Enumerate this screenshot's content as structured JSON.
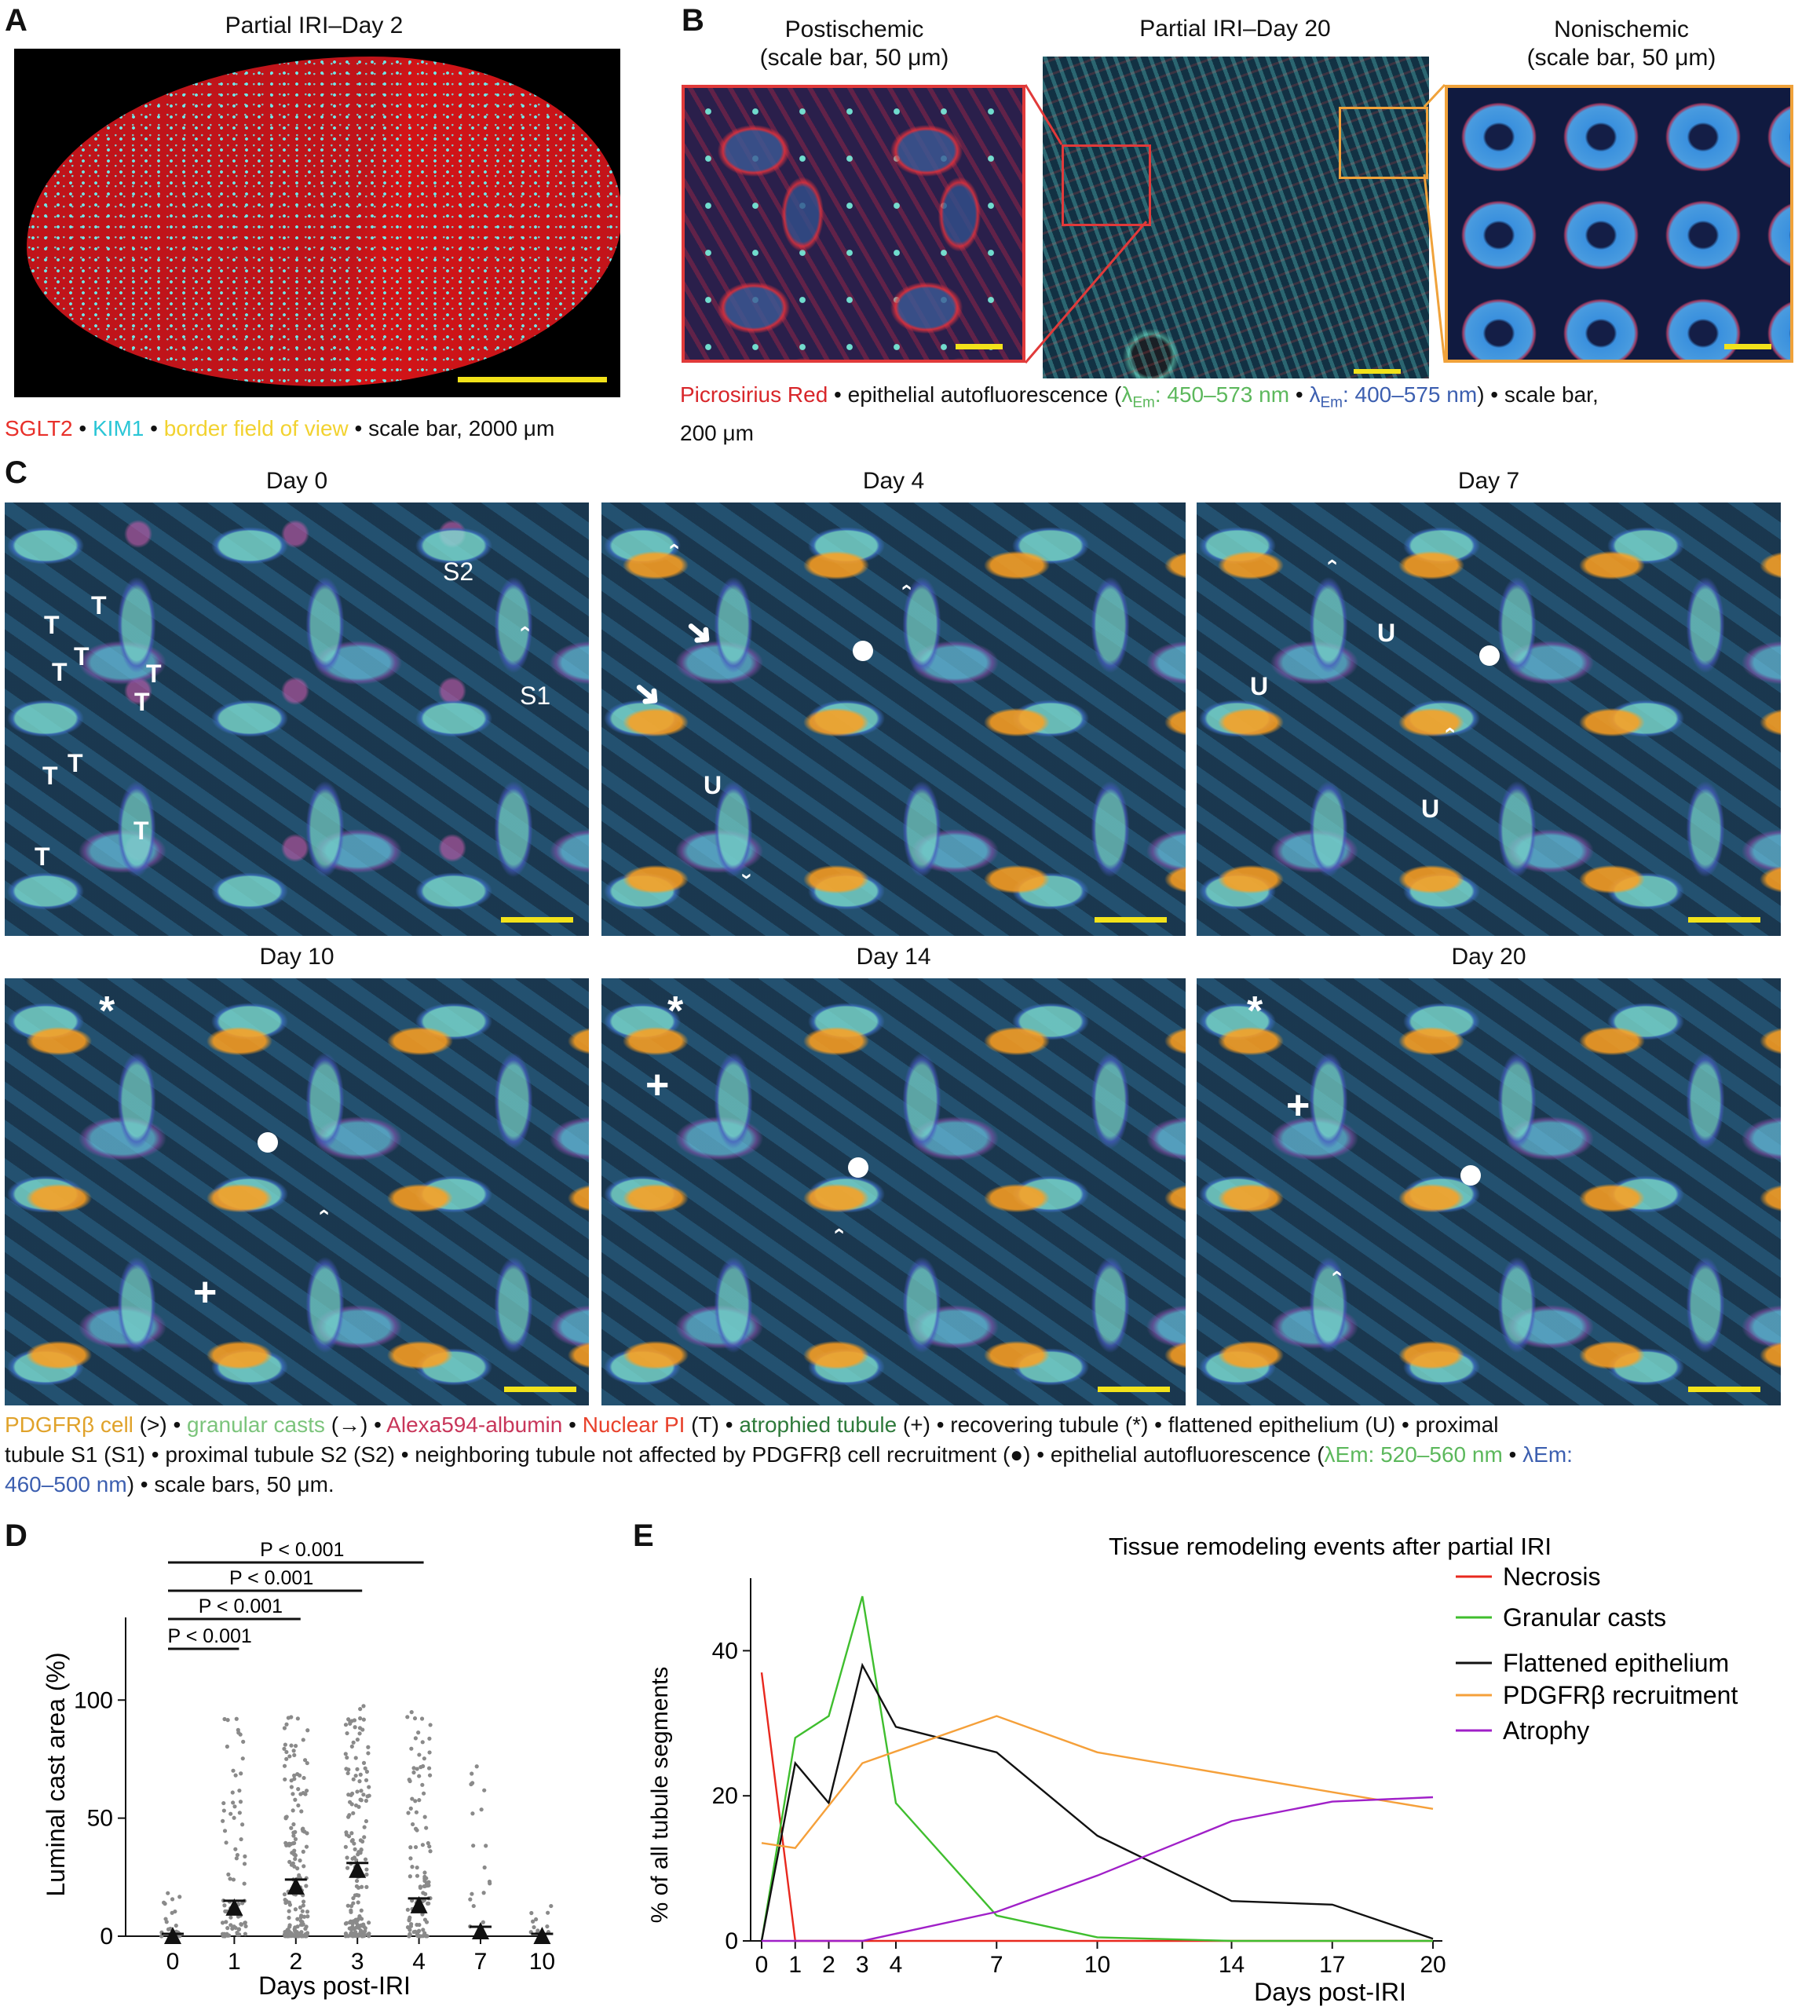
{
  "panelA": {
    "letter": "A",
    "title": "Partial IRI–Day 2",
    "legend": [
      {
        "text": "SGLT2",
        "color": "#e8302a"
      },
      {
        "text": " • ",
        "color": "#111111"
      },
      {
        "text": "KIM1",
        "color": "#2bc6d6"
      },
      {
        "text": " • ",
        "color": "#111111"
      },
      {
        "text": "border field of view",
        "color": "#f2d230"
      },
      {
        "text": " • scale bar, 2000 μm",
        "color": "#111111"
      }
    ]
  },
  "panelB": {
    "letter": "B",
    "title_left_1": "Postischemic",
    "title_left_2": "(scale bar, 50 μm)",
    "title_mid": "Partial IRI–Day 20",
    "title_right_1": "Nonischemic",
    "title_right_2": "(scale bar, 50 μm)",
    "legend_red": "Picrosirius Red",
    "legend_1": " • epithelial autofluorescence (",
    "legend_lam1": "λ",
    "legend_em1": "Em",
    "legend_green": ": 450–573 nm",
    "legend_sep": " • ",
    "legend_lam2": "λ",
    "legend_em2": "Em",
    "legend_blue": ": 400–575  nm",
    "legend_end": ") • scale bar,",
    "legend_line2": "200 μm"
  },
  "panelC": {
    "letter": "C",
    "days": [
      "Day 0",
      "Day 4",
      "Day 7",
      "Day 10",
      "Day 14",
      "Day 20"
    ],
    "markers": {
      "T": "T",
      "S1": "S1",
      "S2": "S2",
      "U": "U",
      "arrow": "➜",
      "chevron": "‹",
      "plus": "+",
      "star": "*"
    },
    "legend_line1": [
      {
        "text": "PDGFRβ cell",
        "color": "#e0a22a"
      },
      {
        "text": " (>) • ",
        "color": "#111111"
      },
      {
        "text": "granular casts",
        "color": "#7cc47c"
      },
      {
        "text": " (→) • ",
        "color": "#111111"
      },
      {
        "text": "Alexa594-albumin",
        "color": "#c8365a"
      },
      {
        "text": " • ",
        "color": "#111111"
      },
      {
        "text": "Nuclear PI",
        "color": "#e8402a"
      },
      {
        "text": " (T) • ",
        "color": "#111111"
      },
      {
        "text": "atrophied tubule",
        "color": "#2e7a3a"
      },
      {
        "text": " (+) • recovering tubule (*) • flattened epithelium (U) • proximal",
        "color": "#111111"
      }
    ],
    "legend_line2": "tubule S1 (S1) • proximal tubule S2 (S2) • neighboring tubule not affected by PDGFRβ cell recruitment (●) • epithelial autofluorescence (",
    "legend_l2_green": "λEm: 520–560 nm",
    "legend_l2_sep": "  • ",
    "legend_l2_blue": "λEm:",
    "legend_line3_blue": "460–500 nm",
    "legend_line3_end": ") • scale bars, 50 μm."
  },
  "panelD": {
    "letter": "D",
    "ylabel": "Luminal cast area (%)",
    "xlabel": "Days post-IRI",
    "significance": [
      {
        "label": "P < 0.001",
        "from": "0",
        "to": "1"
      },
      {
        "label": "P < 0.001",
        "from": "0",
        "to": "2"
      },
      {
        "label": "P < 0.001",
        "from": "0",
        "to": "3"
      },
      {
        "label": "P < 0.001",
        "from": "0",
        "to": "4"
      }
    ]
  },
  "panelE": {
    "letter": "E"
  },
  "chart_data": [
    {
      "type": "scatter",
      "title": "",
      "xlabel": "Days post-IRI",
      "ylabel": "Luminal cast area (%)",
      "categories": [
        "0",
        "1",
        "2",
        "3",
        "4",
        "7",
        "10"
      ],
      "mean": [
        0,
        12,
        21,
        28,
        13,
        2,
        0
      ],
      "sem": [
        1,
        3,
        3,
        3,
        3,
        2,
        1
      ],
      "ylim": [
        0,
        135
      ],
      "yticks": [
        0,
        50,
        100
      ],
      "point_max": [
        22,
        93,
        97,
        100,
        95,
        88,
        21
      ],
      "significance": [
        "P < 0.001",
        "P < 0.001",
        "P < 0.001",
        "P < 0.001"
      ]
    },
    {
      "type": "line",
      "title": "Tissue remodeling events after partial IRI",
      "xlabel": "Days post-IRI",
      "ylabel": "% of all tubule segments",
      "x_ticks": [
        0,
        1,
        2,
        3,
        4,
        7,
        10,
        14,
        17,
        20
      ],
      "y_ticks": [
        0,
        20,
        40
      ],
      "xlim": [
        0,
        20
      ],
      "ylim": [
        0,
        50
      ],
      "legend_position": "right",
      "series": [
        {
          "name": "Necrosis",
          "color": "#e8281e",
          "x": [
            0,
            1,
            2,
            3,
            4,
            7,
            10,
            14,
            17,
            20
          ],
          "values": [
            37,
            0,
            0,
            0,
            0,
            0,
            0,
            0,
            0,
            0
          ]
        },
        {
          "name": "Granular casts",
          "color": "#3fbe2e",
          "x": [
            0,
            1,
            2,
            3,
            4,
            7,
            10,
            14,
            17,
            20
          ],
          "values": [
            0,
            28,
            31,
            47.5,
            19,
            3.5,
            0.5,
            0,
            0,
            0
          ]
        },
        {
          "name": "Flattened epithelium",
          "color": "#111111",
          "x": [
            0,
            1,
            2,
            3,
            4,
            7,
            10,
            14,
            17,
            20
          ],
          "values": [
            0,
            24.5,
            19,
            38,
            29.5,
            26,
            14.5,
            5.5,
            5,
            0.3
          ]
        },
        {
          "name": "PDGFRβ recruitment",
          "color": "#f5a03a",
          "x": [
            0,
            1,
            3,
            7,
            10,
            17,
            20
          ],
          "values": [
            13.5,
            12.8,
            24.5,
            31,
            26,
            20.5,
            18.2
          ]
        },
        {
          "name": "Atrophy",
          "color": "#a020c8",
          "x": [
            0,
            1,
            2,
            3,
            4,
            7,
            10,
            14,
            17,
            20
          ],
          "values": [
            0,
            0,
            0,
            0,
            1,
            4,
            9,
            16.5,
            19.2,
            19.8
          ]
        }
      ]
    }
  ]
}
